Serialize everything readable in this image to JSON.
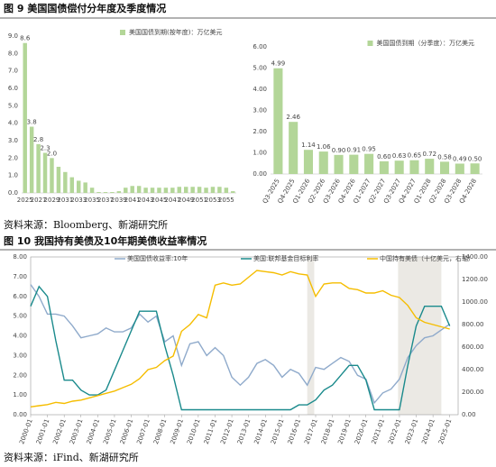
{
  "captions": {
    "fig9": "图 9 美国国债偿付分年度及季度情况",
    "src9": "资料来源：Bloomberg、新湖研究所",
    "fig10": "图 10 我国持有美债及10年期美债收益率情况",
    "src10": "资料来源：iFind、新湖研究所"
  },
  "chart_data": [
    {
      "type": "bar",
      "categories": [
        "2025",
        null,
        "2027",
        null,
        "2029",
        null,
        "2031",
        null,
        "2033",
        null,
        "2035",
        null,
        "2037",
        null,
        "2039",
        null,
        "2041",
        null,
        "2043",
        null,
        "2045",
        null,
        "2047",
        null,
        "2049",
        null,
        "2051",
        null,
        "2053",
        null,
        "2055",
        null
      ],
      "series": [
        {
          "name": "美国国债到期(按年度)：万亿美元",
          "color": "#b3d698",
          "values": [
            8.6,
            3.8,
            2.8,
            2.3,
            2.0,
            1.5,
            1.2,
            0.9,
            0.7,
            0.6,
            0.3,
            0.05,
            0.05,
            0.05,
            0.1,
            0.3,
            0.4,
            0.4,
            0.3,
            0.3,
            0.3,
            0.3,
            0.3,
            0.35,
            0.35,
            0.35,
            0.35,
            0.3,
            0.35,
            0.35,
            0.3,
            0.1
          ],
          "value_labels": [
            "8.6",
            "3.8",
            "2.8",
            "2.3",
            "2.0",
            null,
            null,
            null,
            null,
            null,
            null,
            null,
            null,
            null,
            null,
            null,
            null,
            null,
            null,
            null,
            null,
            null,
            null,
            null,
            null,
            null,
            null,
            null,
            null,
            null,
            null,
            null
          ]
        }
      ],
      "ylim": [
        0,
        9
      ],
      "yticks": [
        {
          "value": 0,
          "label": "0.0"
        },
        {
          "value": 1,
          "label": "1.0"
        },
        {
          "value": 2,
          "label": "2.0"
        },
        {
          "value": 3,
          "label": "3.0"
        },
        {
          "value": 4,
          "label": "4.0"
        },
        {
          "value": 5,
          "label": "5.0"
        },
        {
          "value": 6,
          "label": "6.0"
        },
        {
          "value": 7,
          "label": "7.0"
        },
        {
          "value": 8,
          "label": "8.0"
        },
        {
          "value": 9,
          "label": "9.0"
        }
      ],
      "legend": "top"
    },
    {
      "type": "bar",
      "categories": [
        "Q3-2025",
        "Q4-2025",
        "Q1-2026",
        "Q2-2026",
        "Q3-2026",
        "Q4-2026",
        "Q1-2027",
        "Q2-2027",
        "Q3-2027",
        "Q4-2027",
        "Q1-2028",
        "Q2-2028",
        "Q3-2028",
        "Q4-2028"
      ],
      "series": [
        {
          "name": "美国国债到期（分季度）：万亿美元",
          "color": "#b3d698",
          "values": [
            4.99,
            2.46,
            1.14,
            1.06,
            0.9,
            0.91,
            0.95,
            0.6,
            0.63,
            0.65,
            0.72,
            0.58,
            0.49,
            0.5
          ],
          "value_labels": [
            "4.99",
            "2.46",
            "1.14",
            "1.06",
            "0.90",
            "0.91",
            "0.95",
            "0.60",
            "0.63",
            "0.65",
            "0.72",
            "0.58",
            "0.49",
            "0.50"
          ]
        }
      ],
      "ylim": [
        0,
        6
      ],
      "yticks": [
        {
          "value": 0,
          "label": "0.00"
        },
        {
          "value": 1,
          "label": "1.00"
        },
        {
          "value": 2,
          "label": "2.00"
        },
        {
          "value": 3,
          "label": "3.00"
        },
        {
          "value": 4,
          "label": "4.00"
        },
        {
          "value": 5,
          "label": "5.00"
        },
        {
          "value": 6,
          "label": "6.00"
        }
      ],
      "legend": "top"
    },
    {
      "type": "line",
      "x": [
        "2000-01",
        "2000-07",
        "2001-01",
        "2001-07",
        "2002-01",
        "2002-07",
        "2003-01",
        "2003-07",
        "2004-01",
        "2004-07",
        "2005-01",
        "2005-07",
        "2006-01",
        "2006-07",
        "2007-01",
        "2007-07",
        "2008-01",
        "2008-07",
        "2009-01",
        "2009-07",
        "2010-01",
        "2010-07",
        "2011-01",
        "2011-07",
        "2012-01",
        "2012-07",
        "2013-01",
        "2013-07",
        "2014-01",
        "2014-07",
        "2015-01",
        "2015-07",
        "2016-01",
        "2016-07",
        "2017-01",
        "2017-07",
        "2018-01",
        "2018-07",
        "2019-01",
        "2019-07",
        "2020-01",
        "2020-07",
        "2021-01",
        "2021-07",
        "2022-01",
        "2022-07",
        "2023-01",
        "2023-07",
        "2024-01",
        "2024-07",
        "2025-01"
      ],
      "series": [
        {
          "name": "美国国债收益率:10年",
          "color": "#8faacb",
          "values": [
            6.6,
            6.0,
            5.1,
            5.1,
            5.0,
            4.5,
            3.9,
            4.0,
            4.1,
            4.4,
            4.2,
            4.2,
            4.4,
            5.1,
            4.7,
            5.0,
            3.7,
            4.0,
            2.5,
            3.6,
            3.7,
            3.0,
            3.4,
            3.0,
            1.9,
            1.5,
            1.9,
            2.6,
            2.8,
            2.5,
            1.9,
            2.3,
            2.1,
            1.5,
            2.4,
            2.3,
            2.6,
            2.9,
            2.7,
            2.0,
            1.8,
            0.6,
            1.1,
            1.3,
            1.8,
            2.9,
            3.5,
            3.9,
            4.0,
            4.3,
            4.6
          ]
        },
        {
          "name": "美国:联邦基金目标利率",
          "color": "#1a8a8c",
          "values": [
            5.5,
            6.5,
            6.0,
            3.75,
            1.75,
            1.75,
            1.25,
            1.0,
            1.0,
            1.25,
            2.25,
            3.25,
            4.25,
            5.25,
            5.25,
            5.25,
            3.5,
            2.0,
            0.25,
            0.25,
            0.25,
            0.25,
            0.25,
            0.25,
            0.25,
            0.25,
            0.25,
            0.25,
            0.25,
            0.25,
            0.25,
            0.25,
            0.5,
            0.5,
            0.75,
            1.25,
            1.5,
            2.0,
            2.5,
            2.5,
            1.75,
            0.25,
            0.25,
            0.25,
            0.25,
            2.5,
            4.5,
            5.5,
            5.5,
            5.5,
            4.5
          ]
        },
        {
          "name": "中国持有美债（十亿美元，右轴）",
          "color": "#f5bd00",
          "axis": "y2",
          "values": [
            70,
            80,
            90,
            110,
            100,
            120,
            130,
            150,
            170,
            190,
            210,
            240,
            270,
            320,
            400,
            420,
            480,
            520,
            740,
            800,
            890,
            860,
            1150,
            1170,
            1150,
            1160,
            1220,
            1280,
            1270,
            1260,
            1240,
            1270,
            1250,
            1240,
            1050,
            1160,
            1170,
            1170,
            1120,
            1110,
            1080,
            1080,
            1100,
            1060,
            1040,
            970,
            860,
            820,
            800,
            780,
            760
          ]
        }
      ],
      "xlim": [
        "2000-01",
        "2025-07"
      ],
      "xticks": [
        "2000-01",
        "2001-01",
        "2002-01",
        "2003-01",
        "2004-01",
        "2005-01",
        "2006-01",
        "2007-01",
        "2008-01",
        "2009-01",
        "2010-01",
        "2011-01",
        "2012-01",
        "2013-01",
        "2014-01",
        "2015-01",
        "2016-01",
        "2017-01",
        "2018-01",
        "2019-01",
        "2020-01",
        "2021-01",
        "2022-01",
        "2023-01",
        "2024-01",
        "2025-01"
      ],
      "ylim": [
        0,
        8
      ],
      "yticks": [
        {
          "value": 0,
          "label": "0.00"
        },
        {
          "value": 1,
          "label": "1.00"
        },
        {
          "value": 2,
          "label": "2.00"
        },
        {
          "value": 3,
          "label": "3.00"
        },
        {
          "value": 4,
          "label": "4.00"
        },
        {
          "value": 5,
          "label": "5.00"
        },
        {
          "value": 6,
          "label": "6.00"
        },
        {
          "value": 7,
          "label": "7.00"
        },
        {
          "value": 8,
          "label": "8.00"
        }
      ],
      "y2lim": [
        0,
        1400
      ],
      "y2ticks": [
        {
          "value": 0,
          "label": "0.00"
        },
        {
          "value": 200,
          "label": "200.00"
        },
        {
          "value": 400,
          "label": "400.00"
        },
        {
          "value": 600,
          "label": "600.00"
        },
        {
          "value": 800,
          "label": "800.00"
        },
        {
          "value": 1000,
          "label": "1000.00"
        },
        {
          "value": 1200,
          "label": "1200.00"
        },
        {
          "value": 1400,
          "label": "1400.00"
        }
      ],
      "highlight_ranges": [
        [
          "2016-07",
          "2016-12"
        ],
        [
          "2021-12",
          "2024-07"
        ]
      ],
      "highlight_color": "#ebe9e4",
      "legend": "top"
    }
  ]
}
